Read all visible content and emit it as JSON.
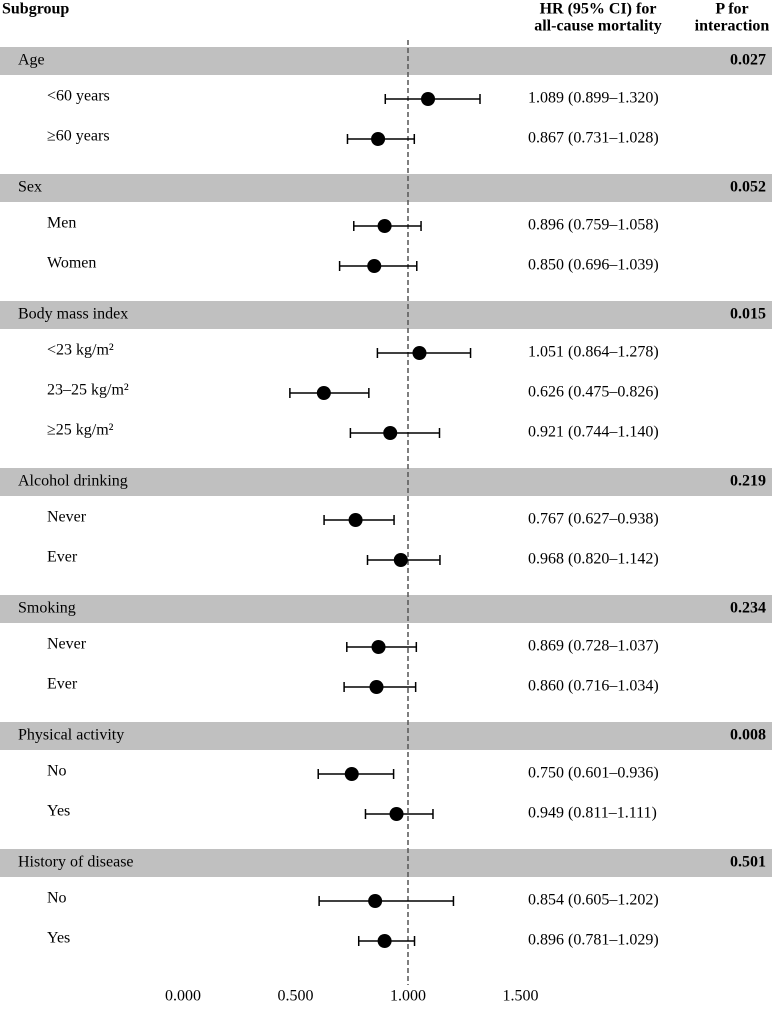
{
  "chart_data": {
    "type": "forest",
    "subgroup_header": "Subgroup",
    "hr_header": [
      "HR (95% CI) for",
      "all-cause mortality"
    ],
    "p_header": [
      "P for",
      "interaction"
    ],
    "xlim": [
      0,
      1.6
    ],
    "xticks": [
      {
        "value": 0,
        "label": "0.000"
      },
      {
        "value": 0.5,
        "label": "0.500"
      },
      {
        "value": 1,
        "label": "1.000"
      },
      {
        "value": 1.5,
        "label": "1.500"
      }
    ],
    "reference_line": 1,
    "color": "#000000",
    "band_color": "#c0c0c0",
    "groups": [
      {
        "name": "Age",
        "p_interaction": 0.027,
        "subgroups": [
          "<60 years",
          "≥60 years"
        ],
        "values": [
          1.089,
          0.867
        ],
        "lower": [
          0.899,
          0.731
        ],
        "upper": [
          1.32,
          1.028
        ],
        "value_labels": [
          "1.089 (0.899–1.320)",
          "0.867 (0.731–1.028)"
        ]
      },
      {
        "name": "Sex",
        "p_interaction": 0.052,
        "subgroups": [
          "Men",
          "Women"
        ],
        "values": [
          0.896,
          0.85
        ],
        "lower": [
          0.759,
          0.696
        ],
        "upper": [
          1.058,
          1.039
        ],
        "value_labels": [
          "0.896 (0.759–1.058)",
          "0.850 (0.696–1.039)"
        ]
      },
      {
        "name": "Body mass index",
        "p_interaction": 0.015,
        "subgroups": [
          "<23 kg/m²",
          "23–25 kg/m²",
          "≥25 kg/m²"
        ],
        "values": [
          1.051,
          0.626,
          0.921
        ],
        "lower": [
          0.864,
          0.475,
          0.744
        ],
        "upper": [
          1.278,
          0.826,
          1.14
        ],
        "value_labels": [
          "1.051 (0.864–1.278)",
          "0.626 (0.475–0.826)",
          "0.921 (0.744–1.140)"
        ]
      },
      {
        "name": "Alcohol drinking",
        "p_interaction": 0.219,
        "subgroups": [
          "Never",
          "Ever"
        ],
        "values": [
          0.767,
          0.968
        ],
        "lower": [
          0.627,
          0.82
        ],
        "upper": [
          0.938,
          1.142
        ],
        "value_labels": [
          "0.767 (0.627–0.938)",
          "0.968 (0.820–1.142)"
        ]
      },
      {
        "name": "Smoking",
        "p_interaction": 0.234,
        "subgroups": [
          "Never",
          "Ever"
        ],
        "values": [
          0.869,
          0.86
        ],
        "lower": [
          0.728,
          0.716
        ],
        "upper": [
          1.037,
          1.034
        ],
        "value_labels": [
          "0.869 (0.728–1.037)",
          "0.860 (0.716–1.034)"
        ]
      },
      {
        "name": "Physical activity",
        "p_interaction": 0.008,
        "subgroups": [
          "No",
          "Yes"
        ],
        "values": [
          0.75,
          0.949
        ],
        "lower": [
          0.601,
          0.811
        ],
        "upper": [
          0.936,
          1.111
        ],
        "value_labels": [
          "0.750 (0.601–0.936)",
          "0.949 (0.811–1.111)"
        ]
      },
      {
        "name": "History of disease",
        "p_interaction": 0.501,
        "subgroups": [
          "No",
          "Yes"
        ],
        "values": [
          0.854,
          0.896
        ],
        "lower": [
          0.605,
          0.781
        ],
        "upper": [
          1.202,
          1.029
        ],
        "value_labels": [
          "0.854 (0.605–1.202)",
          "0.896 (0.781–1.029)"
        ]
      }
    ]
  }
}
